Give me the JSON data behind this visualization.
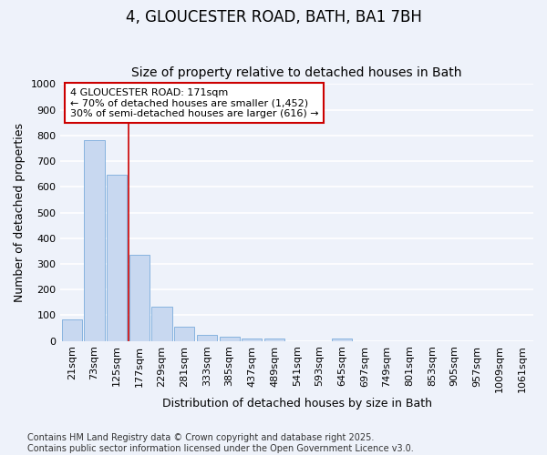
{
  "title1": "4, GLOUCESTER ROAD, BATH, BA1 7BH",
  "title2": "Size of property relative to detached houses in Bath",
  "xlabel": "Distribution of detached houses by size in Bath",
  "ylabel": "Number of detached properties",
  "categories": [
    "21sqm",
    "73sqm",
    "125sqm",
    "177sqm",
    "229sqm",
    "281sqm",
    "333sqm",
    "385sqm",
    "437sqm",
    "489sqm",
    "541sqm",
    "593sqm",
    "645sqm",
    "697sqm",
    "749sqm",
    "801sqm",
    "853sqm",
    "905sqm",
    "957sqm",
    "1009sqm",
    "1061sqm"
  ],
  "values": [
    83,
    780,
    648,
    335,
    135,
    57,
    22,
    17,
    10,
    8,
    0,
    0,
    8,
    0,
    0,
    0,
    0,
    0,
    0,
    0,
    0
  ],
  "bar_color": "#c8d8f0",
  "bar_edge_color": "#7aabdb",
  "background_color": "#eef2fa",
  "grid_color": "#ffffff",
  "red_line_x": 3.0,
  "annotation_text": "4 GLOUCESTER ROAD: 171sqm\n← 70% of detached houses are smaller (1,452)\n30% of semi-detached houses are larger (616) →",
  "annotation_box_color": "#ffffff",
  "annotation_box_edge": "#cc0000",
  "red_line_color": "#cc0000",
  "ylim": [
    0,
    1000
  ],
  "yticks": [
    0,
    100,
    200,
    300,
    400,
    500,
    600,
    700,
    800,
    900,
    1000
  ],
  "footer": "Contains HM Land Registry data © Crown copyright and database right 2025.\nContains public sector information licensed under the Open Government Licence v3.0.",
  "title_fontsize": 12,
  "subtitle_fontsize": 10,
  "axis_label_fontsize": 9,
  "tick_fontsize": 8,
  "annotation_fontsize": 8,
  "footer_fontsize": 7
}
